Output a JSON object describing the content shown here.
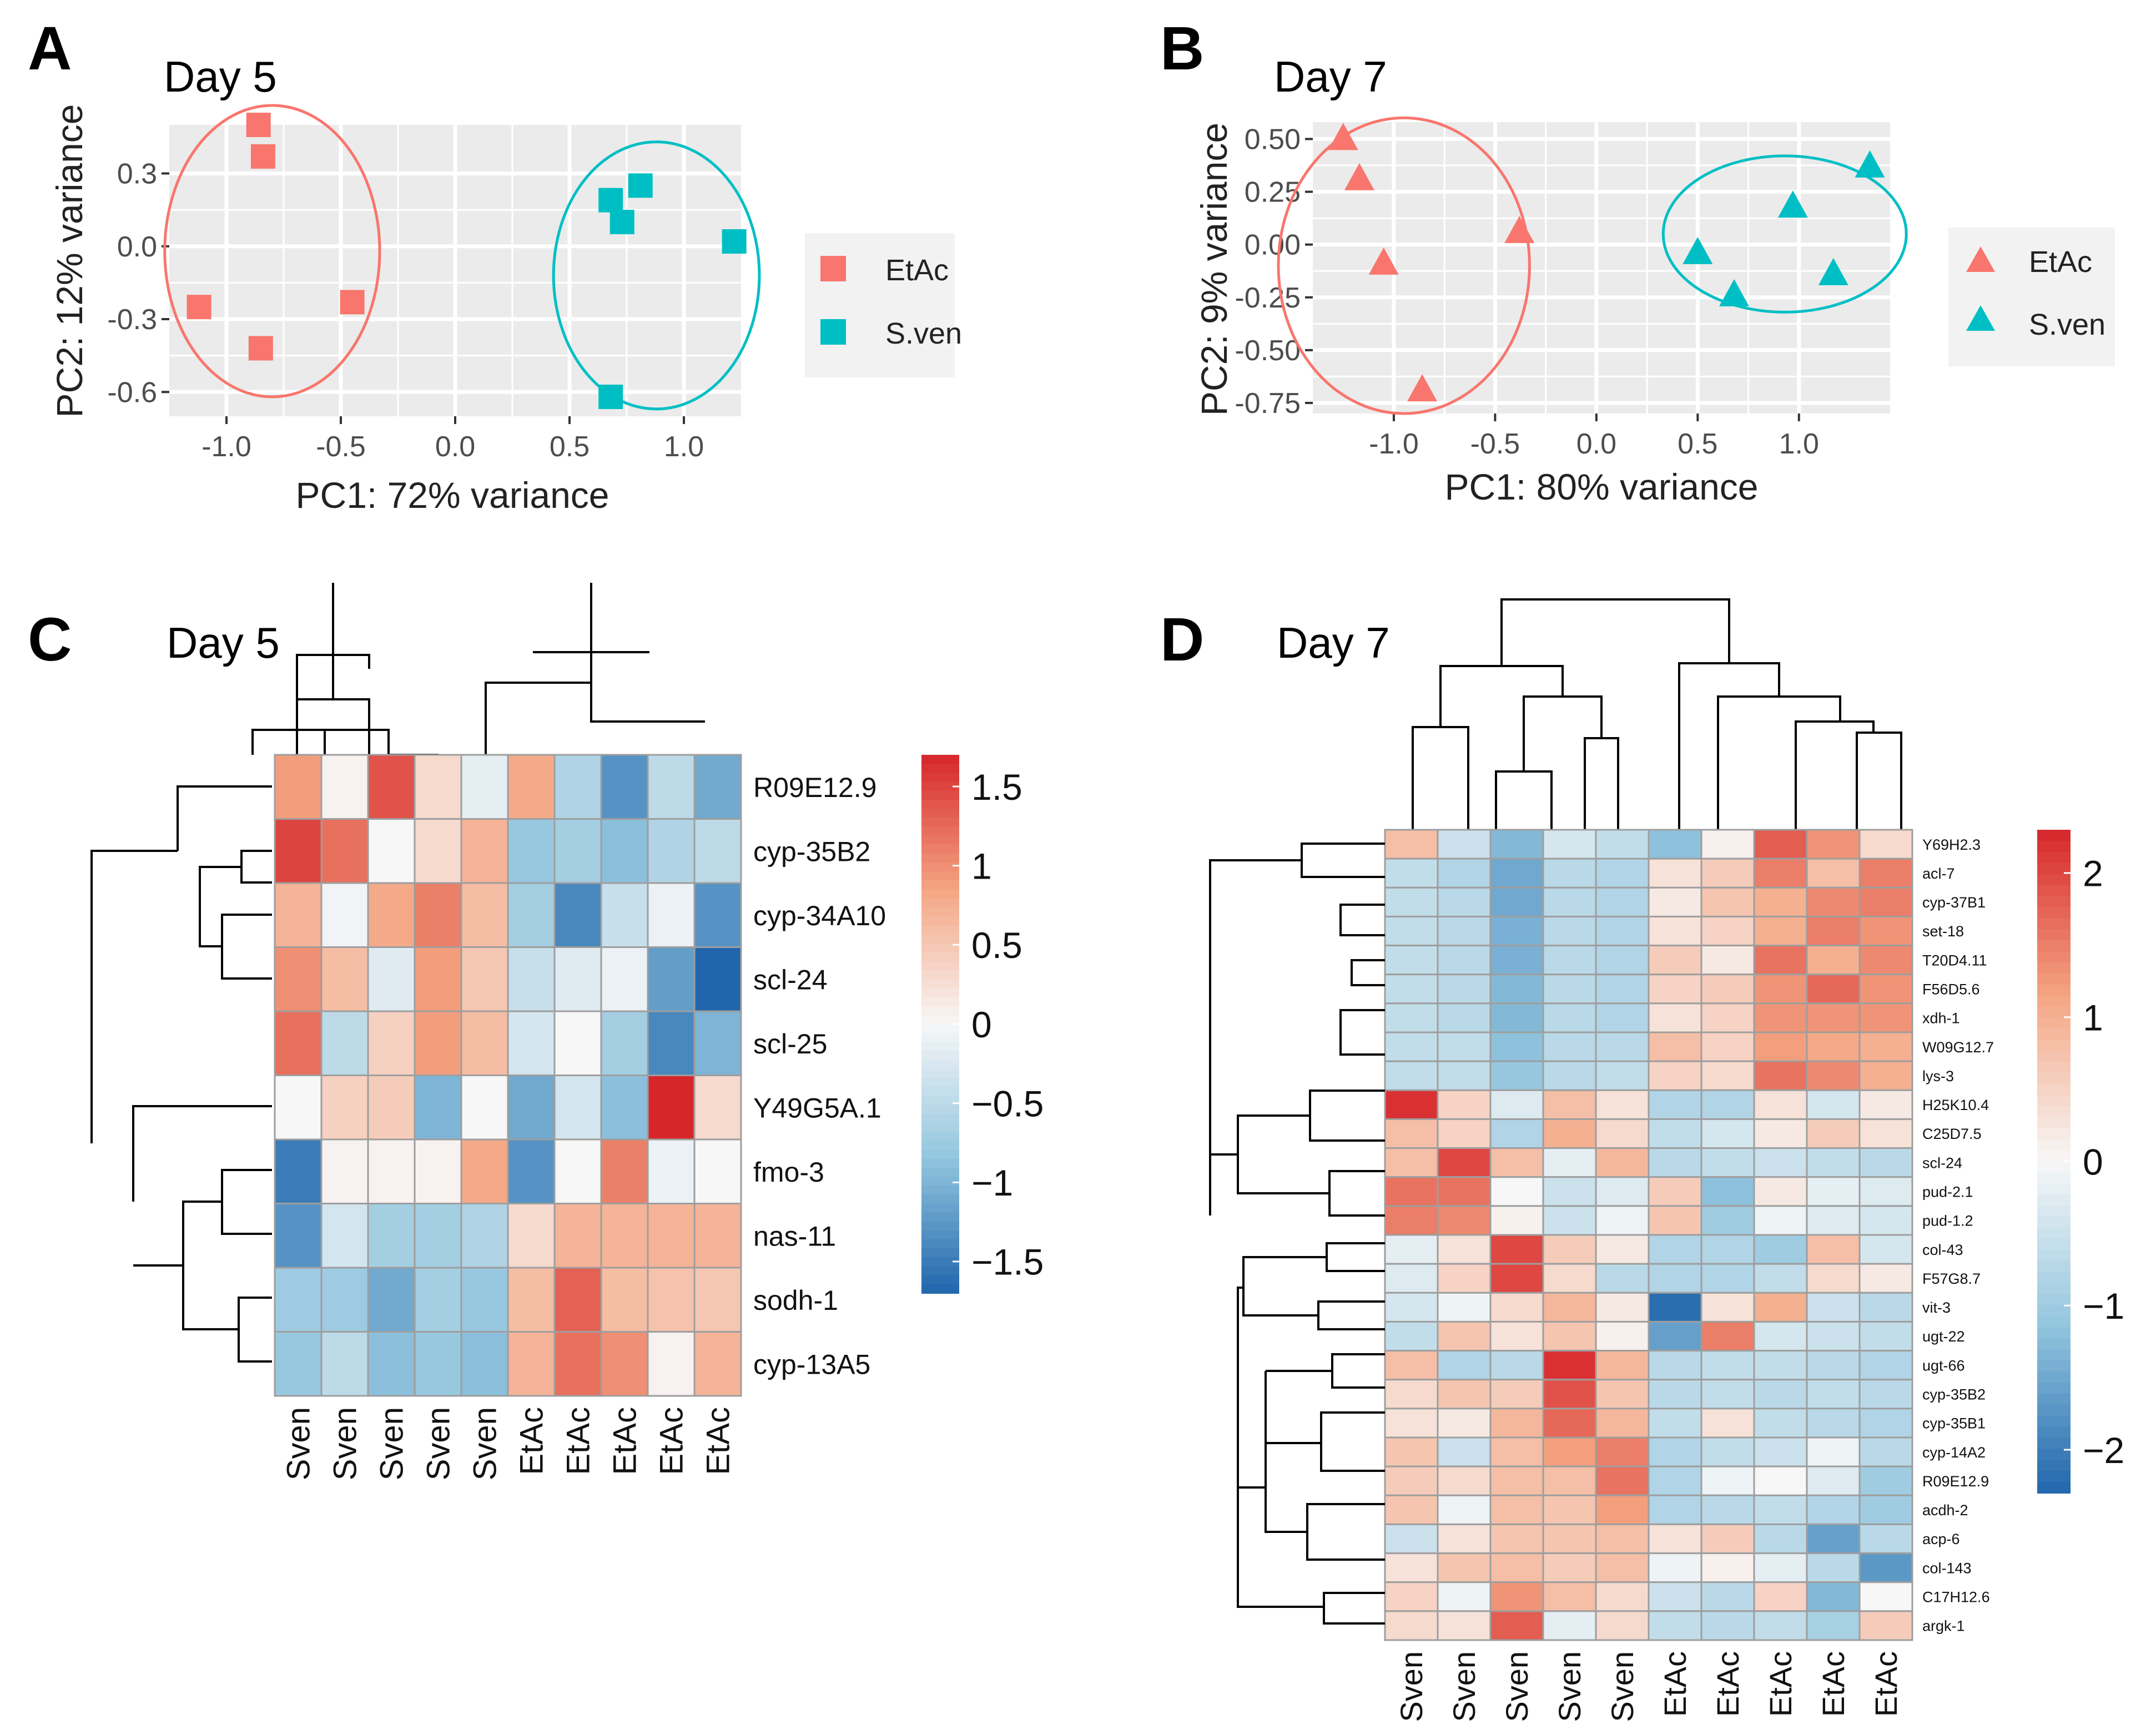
{
  "colors": {
    "etac": "#F8766D",
    "sven": "#00BFC4",
    "panel": "#EBEBEB",
    "grid": "#FFFFFF",
    "cellBorder": "#9E9E9E"
  },
  "chart_data": [
    {
      "panel": "A",
      "type": "scatter",
      "title": "Day 5",
      "xlabel": "PC1: 72% variance",
      "ylabel": "PC2: 12% variance",
      "xlim": [
        -1.25,
        1.25
      ],
      "ylim": [
        -0.7,
        0.5
      ],
      "xticks": [
        -1.0,
        -0.5,
        0.0,
        0.5,
        1.0
      ],
      "xtick_labels": [
        "-1.0",
        "-0.5",
        "0.0",
        "0.5",
        "1.0"
      ],
      "yticks": [
        0.3,
        0.0,
        -0.3,
        -0.6
      ],
      "ytick_labels": [
        "0.3",
        "0.0",
        "-0.3",
        "-0.6"
      ],
      "marker": "square",
      "legend": [
        "EtAc",
        "S.ven"
      ],
      "series": [
        {
          "name": "EtAc",
          "points": [
            [
              -0.86,
              0.5
            ],
            [
              -0.84,
              0.37
            ],
            [
              -1.12,
              -0.25
            ],
            [
              -0.85,
              -0.42
            ],
            [
              -0.45,
              -0.23
            ]
          ]
        },
        {
          "name": "S.ven",
          "points": [
            [
              0.68,
              0.19
            ],
            [
              0.81,
              0.25
            ],
            [
              0.73,
              0.1
            ],
            [
              1.22,
              0.02
            ],
            [
              0.68,
              -0.62
            ]
          ]
        }
      ],
      "ellipses": [
        {
          "name": "EtAc",
          "cx": -0.8,
          "cy": -0.02,
          "rx": 0.47,
          "ry": 0.6
        },
        {
          "name": "S.ven",
          "cx": 0.88,
          "cy": -0.12,
          "rx": 0.45,
          "ry": 0.55
        }
      ]
    },
    {
      "panel": "B",
      "type": "scatter",
      "title": "Day 7",
      "xlabel": "PC1: 80% variance",
      "ylabel": "PC2: 9% variance",
      "xlim": [
        -1.4,
        1.45
      ],
      "ylim": [
        -0.8,
        0.58
      ],
      "xticks": [
        -1.0,
        -0.5,
        0.0,
        0.5,
        1.0
      ],
      "xtick_labels": [
        "-1.0",
        "-0.5",
        "0.0",
        "0.5",
        "1.0"
      ],
      "yticks": [
        0.5,
        0.25,
        0.0,
        -0.25,
        -0.5,
        -0.75
      ],
      "ytick_labels": [
        "0.50",
        "0.25",
        "0.00",
        "-0.25",
        "-0.50",
        "-0.75"
      ],
      "marker": "triangle",
      "legend": [
        "EtAc",
        "S.ven"
      ],
      "series": [
        {
          "name": "EtAc",
          "points": [
            [
              -1.25,
              0.5
            ],
            [
              -1.17,
              0.31
            ],
            [
              -1.05,
              -0.09
            ],
            [
              -0.38,
              0.06
            ],
            [
              -0.86,
              -0.69
            ]
          ]
        },
        {
          "name": "S.ven",
          "points": [
            [
              1.35,
              0.37
            ],
            [
              0.97,
              0.18
            ],
            [
              0.5,
              -0.04
            ],
            [
              0.68,
              -0.24
            ],
            [
              1.17,
              -0.14
            ]
          ]
        }
      ],
      "ellipses": [
        {
          "name": "EtAc",
          "cx": -0.95,
          "cy": -0.1,
          "rx": 0.62,
          "ry": 0.7
        },
        {
          "name": "S.ven",
          "cx": 0.93,
          "cy": 0.05,
          "rx": 0.6,
          "ry": 0.37
        }
      ]
    },
    {
      "panel": "C",
      "type": "heatmap",
      "title": "Day 5",
      "columns": [
        "Sven",
        "Sven",
        "Sven",
        "Sven",
        "Sven",
        "EtAc",
        "EtAc",
        "EtAc",
        "EtAc",
        "EtAc"
      ],
      "rows": [
        "R09E12.9",
        "cyp-35B2",
        "cyp-34A10",
        "scl-24",
        "scl-25",
        "Y49G5A.1",
        "fmo-3",
        "nas-11",
        "sodh-1",
        "cyp-13A5"
      ],
      "values": [
        [
          0.9,
          0.05,
          1.4,
          0.3,
          -0.15,
          0.8,
          -0.6,
          -1.3,
          -0.5,
          -1.1
        ],
        [
          1.5,
          1.2,
          0.0,
          0.3,
          0.7,
          -0.8,
          -0.7,
          -0.9,
          -0.6,
          -0.5
        ],
        [
          0.7,
          -0.05,
          0.8,
          1.1,
          0.6,
          -0.7,
          -1.4,
          -0.4,
          -0.1,
          -1.3
        ],
        [
          1.0,
          0.6,
          -0.2,
          0.9,
          0.5,
          -0.4,
          -0.2,
          -0.1,
          -1.2,
          -1.7
        ],
        [
          1.2,
          -0.5,
          0.4,
          0.9,
          0.6,
          -0.3,
          0.0,
          -0.7,
          -1.4,
          -1.0
        ],
        [
          0.0,
          0.4,
          0.45,
          -1.0,
          0.0,
          -1.1,
          -0.3,
          -0.9,
          1.8,
          0.3
        ],
        [
          -1.5,
          0.05,
          0.05,
          0.05,
          0.8,
          -1.3,
          0.0,
          1.1,
          -0.1,
          0.0
        ],
        [
          -1.3,
          -0.3,
          -0.7,
          -0.7,
          -0.6,
          0.3,
          0.7,
          0.7,
          0.7,
          0.7
        ],
        [
          -0.75,
          -0.75,
          -1.1,
          -0.7,
          -0.8,
          0.6,
          1.3,
          0.6,
          0.55,
          0.5
        ],
        [
          -0.8,
          -0.5,
          -0.9,
          -0.8,
          -0.9,
          0.7,
          1.2,
          1.0,
          0.05,
          0.7
        ]
      ],
      "colorbar": {
        "min": -1.7,
        "max": 1.7,
        "ticks": [
          1.5,
          1,
          0.5,
          0,
          -0.5,
          -1,
          -1.5
        ],
        "tick_labels": [
          "1.5",
          "1",
          "0.5",
          "0",
          "−0.5",
          "−1",
          "−1.5"
        ]
      }
    },
    {
      "panel": "D",
      "type": "heatmap",
      "title": "Day 7",
      "columns": [
        "Sven",
        "Sven",
        "Sven",
        "Sven",
        "Sven",
        "EtAc",
        "EtAc",
        "EtAc",
        "EtAc",
        "EtAc"
      ],
      "rows": [
        "Y69H2.3",
        "acl-7",
        "cyp-37B1",
        "set-18",
        "T20D4.11",
        "F56D5.6",
        "xdh-1",
        "W09G12.7",
        "lys-3",
        "H25K10.4",
        "C25D7.5",
        "scl-24",
        "pud-2.1",
        "pud-1.2",
        "col-43",
        "F57G8.7",
        "vit-3",
        "ugt-22",
        "ugt-66",
        "cyp-35B2",
        "cyp-35B1",
        "cyp-14A2",
        "R09E12.9",
        "acdh-2",
        "acp-6",
        "col-143",
        "C17H12.6",
        "argk-1"
      ],
      "values": [
        [
          0.8,
          -0.5,
          -1.3,
          -0.4,
          -0.6,
          -1.2,
          0.1,
          1.8,
          1.3,
          0.4
        ],
        [
          -0.6,
          -0.8,
          -1.5,
          -0.7,
          -0.8,
          0.3,
          0.6,
          1.5,
          0.8,
          1.5
        ],
        [
          -0.6,
          -0.7,
          -1.5,
          -0.7,
          -0.8,
          0.2,
          0.7,
          1.0,
          1.4,
          1.5
        ],
        [
          -0.6,
          -0.7,
          -1.4,
          -0.7,
          -0.8,
          0.3,
          0.5,
          1.0,
          1.5,
          1.3
        ],
        [
          -0.6,
          -0.7,
          -1.4,
          -0.7,
          -0.8,
          0.6,
          0.2,
          1.6,
          1.0,
          1.4
        ],
        [
          -0.6,
          -0.7,
          -1.3,
          -0.7,
          -0.8,
          0.5,
          0.6,
          1.3,
          1.7,
          1.3
        ],
        [
          -0.6,
          -0.7,
          -1.3,
          -0.7,
          -0.8,
          0.3,
          0.5,
          1.3,
          1.3,
          1.3
        ],
        [
          -0.6,
          -0.6,
          -1.2,
          -0.7,
          -0.7,
          0.8,
          0.5,
          1.2,
          1.1,
          1.0
        ],
        [
          -0.6,
          -0.6,
          -1.1,
          -0.7,
          -0.6,
          0.5,
          0.4,
          1.6,
          1.4,
          1.0
        ],
        [
          2.2,
          0.5,
          -0.3,
          0.8,
          0.3,
          -0.8,
          -0.8,
          0.3,
          -0.4,
          0.2
        ],
        [
          0.8,
          0.5,
          -0.8,
          1.0,
          0.4,
          -0.6,
          -0.4,
          0.2,
          0.6,
          0.3
        ],
        [
          0.8,
          2.0,
          0.8,
          -0.2,
          0.9,
          -0.7,
          -0.6,
          -0.5,
          -0.6,
          -0.7
        ],
        [
          1.6,
          1.6,
          0.0,
          -0.5,
          -0.3,
          0.6,
          -1.2,
          0.2,
          -0.2,
          -0.3
        ],
        [
          1.5,
          1.4,
          0.1,
          -0.5,
          -0.1,
          0.7,
          -1.0,
          -0.1,
          -0.3,
          -0.4
        ],
        [
          -0.2,
          0.3,
          2.0,
          0.6,
          0.2,
          -0.8,
          -0.8,
          -1.0,
          0.8,
          -0.4
        ],
        [
          -0.3,
          0.5,
          2.0,
          0.4,
          -0.7,
          -0.8,
          -0.8,
          -0.6,
          0.4,
          0.2
        ],
        [
          -0.4,
          -0.1,
          0.4,
          0.9,
          0.2,
          -2.2,
          0.3,
          1.0,
          -0.5,
          -0.7
        ],
        [
          -0.6,
          0.7,
          0.3,
          0.7,
          0.1,
          -1.6,
          1.5,
          -0.4,
          -0.5,
          -0.6
        ],
        [
          0.8,
          -0.8,
          -0.7,
          2.2,
          0.9,
          -0.7,
          -0.6,
          -0.6,
          -0.7,
          -0.8
        ],
        [
          0.4,
          0.7,
          0.6,
          1.9,
          0.7,
          -0.7,
          -0.6,
          -0.7,
          -0.6,
          -0.7
        ],
        [
          0.3,
          0.2,
          0.9,
          1.7,
          0.9,
          -0.6,
          0.3,
          -0.6,
          -0.7,
          -0.8
        ],
        [
          0.7,
          -0.5,
          0.8,
          1.2,
          1.5,
          -0.8,
          -0.6,
          -0.5,
          -0.1,
          -0.7
        ],
        [
          0.6,
          0.4,
          0.8,
          0.8,
          1.6,
          -0.8,
          -0.1,
          0.0,
          -0.3,
          -1.0
        ],
        [
          0.7,
          -0.1,
          0.8,
          0.7,
          1.2,
          -0.8,
          -0.7,
          -0.6,
          -0.8,
          -1.0
        ],
        [
          -0.5,
          0.3,
          0.7,
          0.7,
          0.8,
          0.3,
          0.6,
          -0.7,
          -1.6,
          -0.7
        ],
        [
          0.3,
          0.7,
          0.8,
          0.6,
          0.8,
          -0.1,
          0.1,
          -0.2,
          -0.7,
          -1.7
        ],
        [
          0.5,
          -0.1,
          1.3,
          0.8,
          0.4,
          -0.5,
          -0.7,
          0.5,
          -1.3,
          0.0
        ],
        [
          0.4,
          0.3,
          1.8,
          -0.2,
          0.4,
          -0.6,
          -0.7,
          -0.6,
          -0.9,
          0.6
        ]
      ],
      "colorbar": {
        "min": -2.3,
        "max": 2.3,
        "ticks": [
          2,
          1,
          0,
          -1,
          -2
        ],
        "tick_labels": [
          "2",
          "1",
          "0",
          "−1",
          "−2"
        ]
      }
    }
  ],
  "panel_letters": [
    "A",
    "B",
    "C",
    "D"
  ]
}
